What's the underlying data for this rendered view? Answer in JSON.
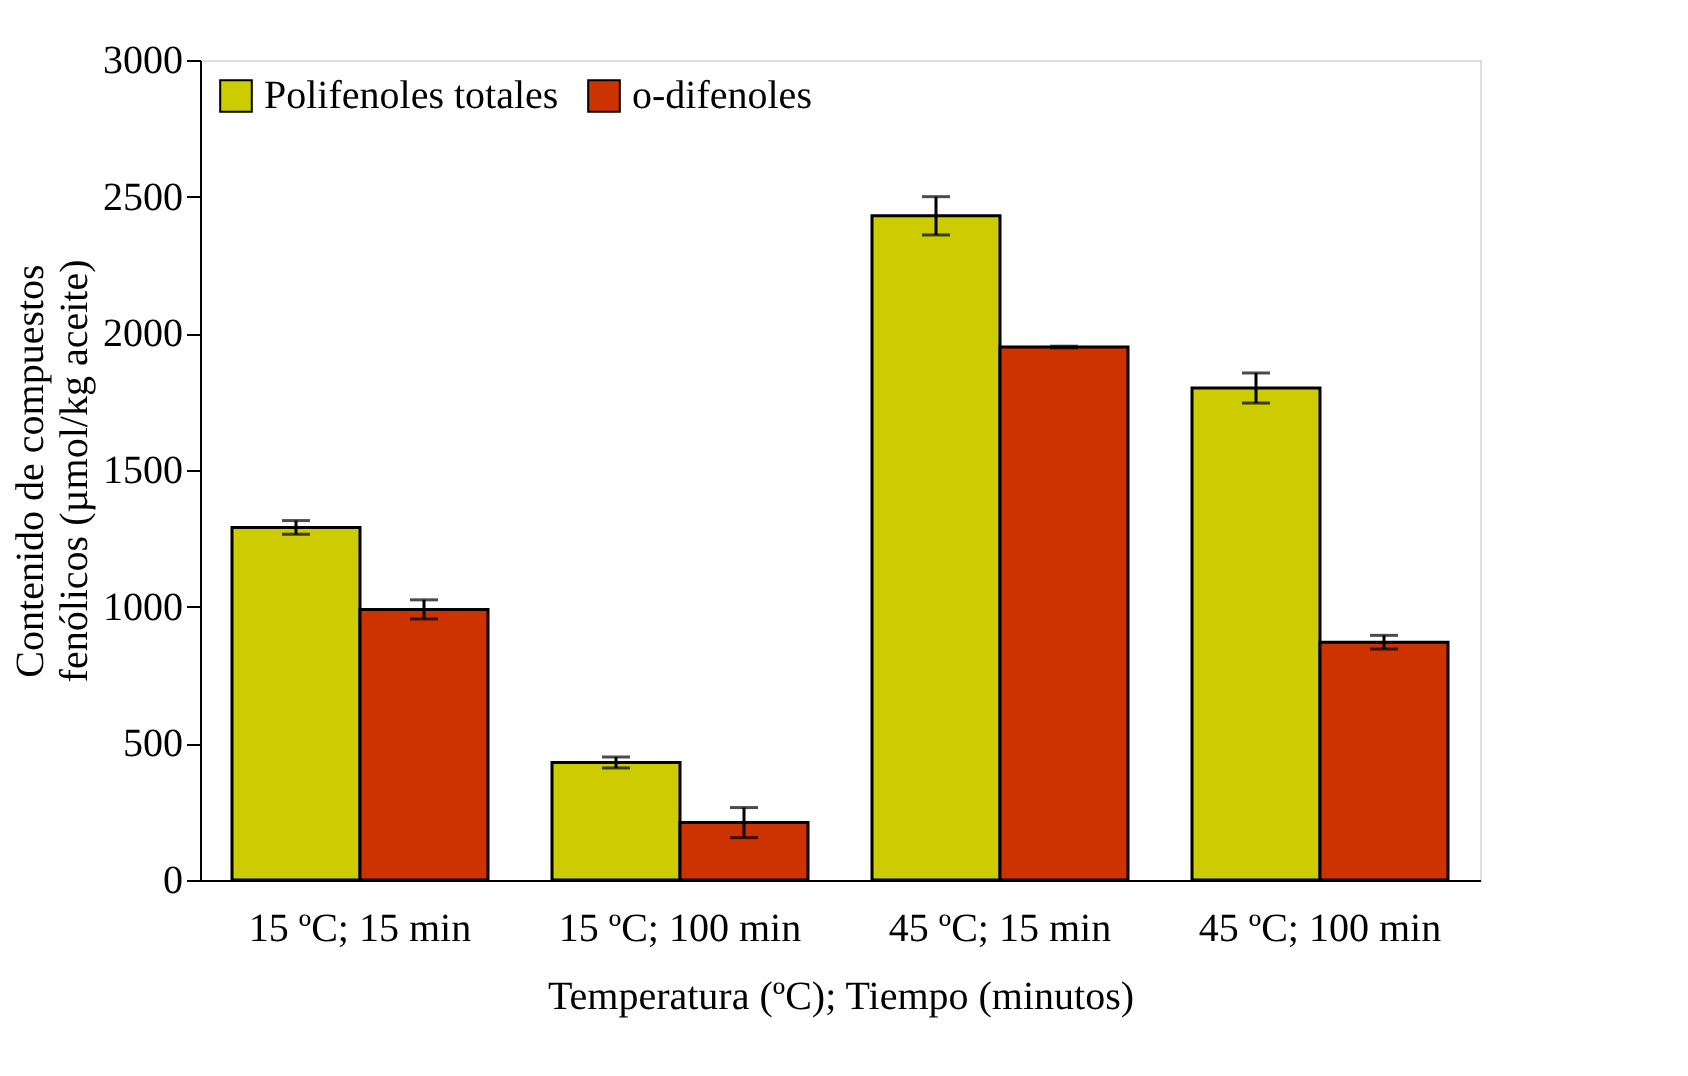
{
  "chart_data": {
    "type": "bar",
    "xlabel": "Temperatura (ºC); Tiempo (minutos)",
    "ylabel": "Contenido de compuestos fenólicos (µmol/kg aceite)",
    "categories": [
      "15 ºC; 15 min",
      "15 ºC; 100 min",
      "45 ºC; 15 min",
      "45 ºC; 100 min"
    ],
    "series": [
      {
        "name": "Polifenoles totales",
        "color": "#cccc00",
        "values": [
          1290,
          430,
          2430,
          1800
        ],
        "errors": [
          25,
          20,
          70,
          55
        ]
      },
      {
        "name": "o-difenoles",
        "color": "#cc3300",
        "values": [
          990,
          210,
          1950,
          870
        ],
        "errors": [
          35,
          55,
          3,
          25
        ]
      }
    ],
    "ylim": [
      0,
      3000
    ],
    "yticks": [
      0,
      500,
      1000,
      1500,
      2000,
      2500,
      3000
    ],
    "grid": false,
    "legend": "top left"
  }
}
